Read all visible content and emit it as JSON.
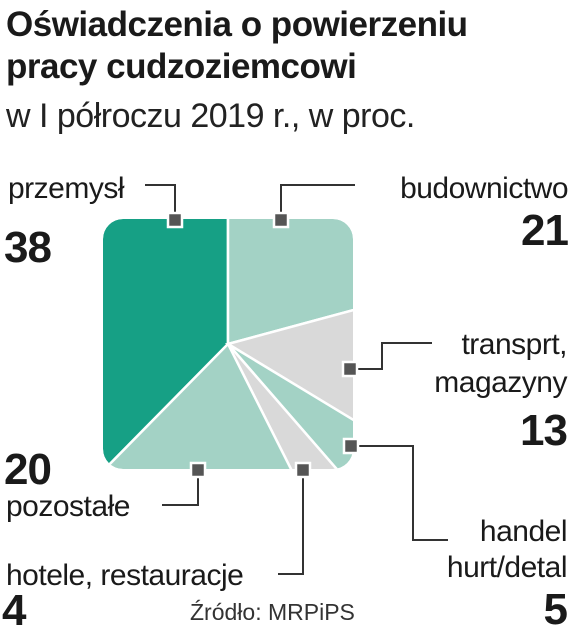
{
  "header": {
    "title_line1": "Oświadczenia o powierzeniu",
    "title_line2": "pracy cudzoziemcowi",
    "subtitle": "w I półroczu 2019 r., w proc."
  },
  "source": "Źródło: MRPiPS",
  "colors": {
    "dark_green": "#16a085",
    "light_green": "#a3d2c5",
    "light_gray": "#d9d9d9",
    "marker": "#555555",
    "frame": "#ffffff"
  },
  "chart_data": {
    "type": "pie",
    "shape": "rounded-square",
    "title": "Oświadczenia o powierzeniu pracy cudzoziemcowi",
    "subtitle": "w I półroczu 2019 r., w proc.",
    "unit": "proc.",
    "slices": [
      {
        "label": "przemysł",
        "label_lines": [
          "przemysł"
        ],
        "value": 38,
        "display": "38",
        "color": "#16a085"
      },
      {
        "label": "budownictwo",
        "label_lines": [
          "budownictwo"
        ],
        "value": 21,
        "display": "21",
        "color": "#a3d2c5"
      },
      {
        "label": "transprt, magazyny",
        "label_lines": [
          "transprt,",
          "magazyny"
        ],
        "value": 13,
        "display": "13",
        "color": "#d9d9d9"
      },
      {
        "label": "handel hurt/detal",
        "label_lines": [
          "handel",
          "hurt/detal"
        ],
        "value": 5,
        "display": "5",
        "color": "#a3d2c5"
      },
      {
        "label": "hotele, restauracje",
        "label_lines": [
          "hotele, restauracje"
        ],
        "value": 4,
        "display": "4",
        "color": "#d9d9d9"
      },
      {
        "label": "pozostałe",
        "label_lines": [
          "pozostałe"
        ],
        "value": 20,
        "display": "20",
        "color": "#a3d2c5"
      }
    ]
  }
}
